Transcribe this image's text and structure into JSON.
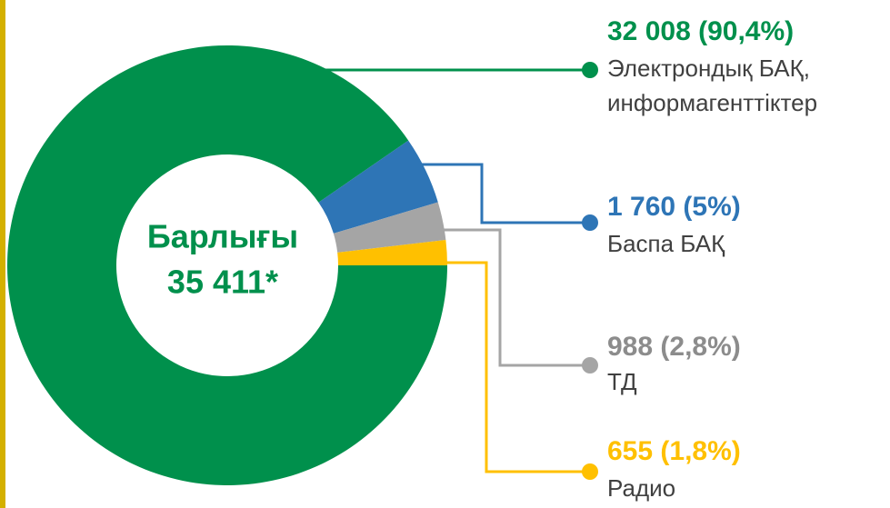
{
  "chart_data": {
    "type": "pie",
    "donut": true,
    "center_title": "Барлығы",
    "center_value": "35 411*",
    "categories": [
      "Электрондық БАҚ, информагенттіктер",
      "Баспа БАҚ",
      "ТД",
      "Радио"
    ],
    "values": [
      32008,
      1760,
      988,
      655
    ],
    "value_labels": [
      "32 008 (90,4%)",
      "1 760 (5%)",
      "988 (2,8%)",
      "655 (1,8%)"
    ],
    "colors": [
      "#00904c",
      "#2e75b6",
      "#a5a5a5",
      "#ffc000"
    ]
  }
}
